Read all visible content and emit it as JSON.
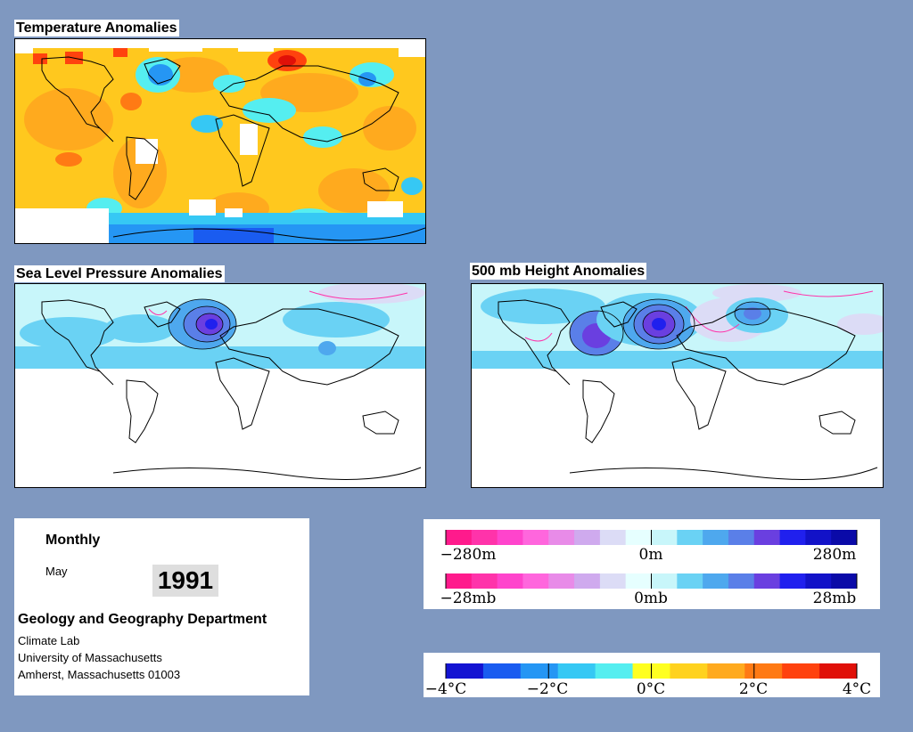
{
  "panels": {
    "temperature": {
      "title": "Temperature Anomalies"
    },
    "slp": {
      "title": "Sea Level Pressure Anomalies"
    },
    "height500": {
      "title": "500 mb Height Anomalies"
    }
  },
  "info": {
    "period": "Monthly",
    "month": "May",
    "year": "1991",
    "department": "Geology and Geography Department",
    "lab": "Climate Lab",
    "university": "University of Massachusetts",
    "address": "Amherst, Massachusetts 01003"
  },
  "legends": {
    "height": {
      "labels": [
        "−280m",
        "0m",
        "280m"
      ]
    },
    "pressure": {
      "labels": [
        "−28mb",
        "0mb",
        "28mb"
      ]
    },
    "temperature": {
      "labels": [
        "−4°C",
        "−2°C",
        "0°C",
        "2°C",
        "4°C"
      ]
    }
  },
  "colors": {
    "background": "#7f98c0",
    "anomaly_scale_neg_to_pos": [
      "#ff1a8c",
      "#ff33aa",
      "#ff44cc",
      "#ff66dd",
      "#e88be8",
      "#cfaaee",
      "#dcdcf6",
      "#e6ffff",
      "#c8f6fa",
      "#6ad2f4",
      "#4ea8ee",
      "#5a7fe8",
      "#6a3fe0",
      "#2020ee",
      "#1212c8",
      "#0a0aa8"
    ],
    "temp_scale_neg_to_pos": [
      "#1414d2",
      "#1a5cf0",
      "#2596f4",
      "#36c8f4",
      "#55eef0",
      "#ffff20",
      "#ffd21e",
      "#ffaa1e",
      "#ff7a14",
      "#ff420e",
      "#e01008"
    ]
  }
}
